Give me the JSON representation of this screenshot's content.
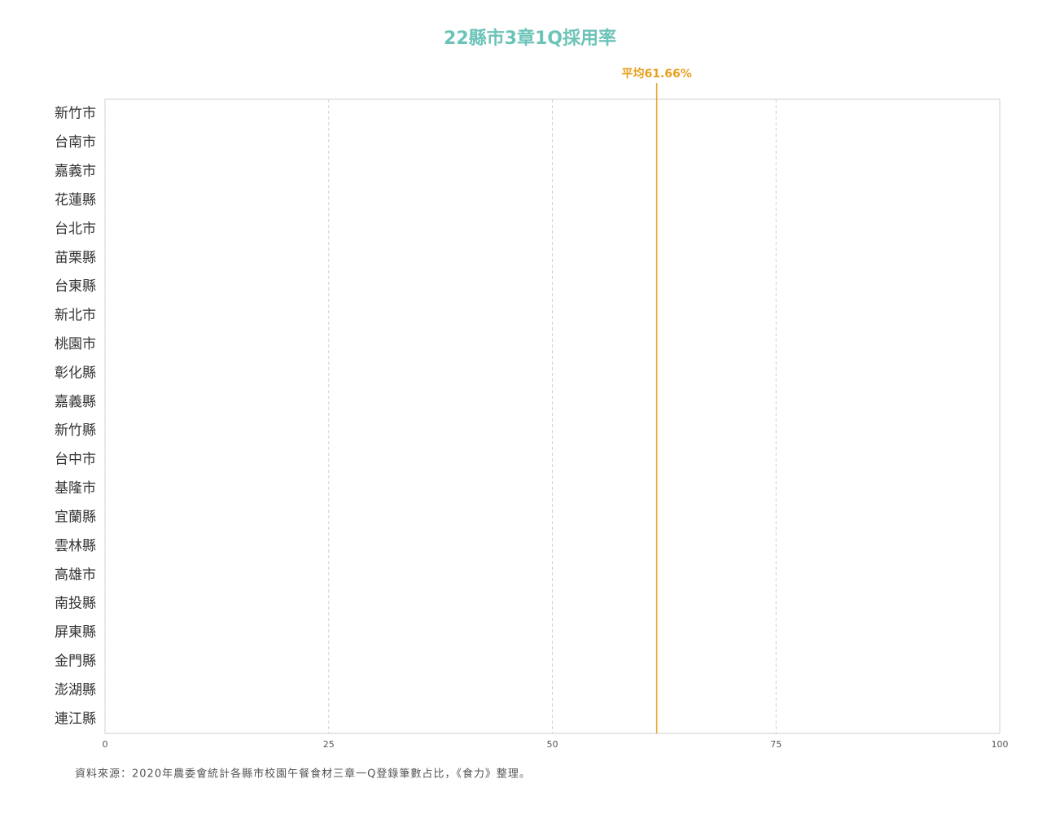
{
  "chart_data": {
    "type": "bar",
    "orientation": "horizontal",
    "title": "22縣市3章1Q採用率",
    "categories": [
      "新竹市",
      "台南市",
      "嘉義市",
      "花蓮縣",
      "台北市",
      "苗栗縣",
      "台東縣",
      "新北市",
      "桃園市",
      "彰化縣",
      "嘉義縣",
      "新竹縣",
      "台中市",
      "基隆市",
      "宜蘭縣",
      "雲林縣",
      "高雄市",
      "南投縣",
      "屏東縣",
      "金門縣",
      "澎湖縣",
      "連江縣"
    ],
    "xlim": [
      0,
      100
    ],
    "xticks": [
      0,
      25,
      50,
      75,
      100
    ],
    "grid": true,
    "reference_line": {
      "value": 61.66,
      "label": "平均61.66%",
      "color": "#e8a020"
    },
    "source": "資料來源：2020年農委會統計各縣市校園午餐食材三章一Q登錄筆數占比，《食力》整理。"
  }
}
